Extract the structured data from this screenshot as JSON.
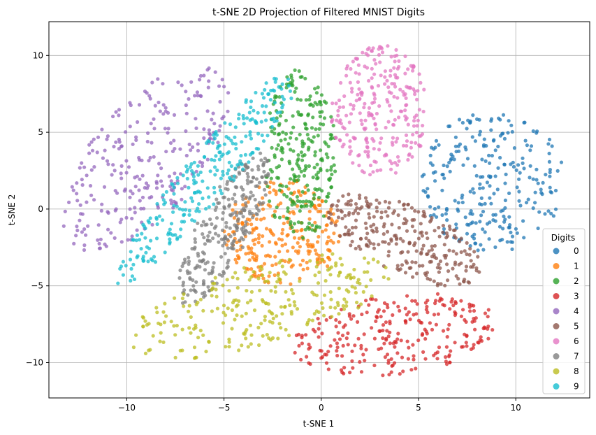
{
  "chart_data": {
    "type": "scatter",
    "title": "t-SNE 2D Projection of Filtered MNIST Digits",
    "xlabel": "t-SNE 1",
    "ylabel": "t-SNE 2",
    "xlim": [
      -14,
      13.8
    ],
    "ylim": [
      -12.3,
      12.2
    ],
    "xticks": [
      -10,
      -5,
      0,
      5,
      10
    ],
    "yticks": [
      -10,
      -5,
      0,
      5,
      10
    ],
    "xtick_labels": [
      "−10",
      "−5",
      "0",
      "5",
      "10"
    ],
    "ytick_labels": [
      "−10",
      "−5",
      "0",
      "5",
      "10"
    ],
    "grid": true,
    "legend": {
      "title": "Digits",
      "position": "lower-right"
    },
    "series": [
      {
        "name": "0",
        "color": "#1f77b4",
        "cluster": {
          "cx": 8.8,
          "cy": 1.8,
          "rx": 3.7,
          "ry": 4.6,
          "rot": 0
        }
      },
      {
        "name": "1",
        "color": "#ff7f0e",
        "cluster": {
          "cx": -2.0,
          "cy": -1.5,
          "rx": 3.0,
          "ry": 3.5,
          "rot": 0
        }
      },
      {
        "name": "2",
        "color": "#2ca02c",
        "cluster": {
          "cx": -1.1,
          "cy": 3.5,
          "rx": 1.9,
          "ry": 5.6,
          "rot": 0
        }
      },
      {
        "name": "3",
        "color": "#d62728",
        "cluster": {
          "cx": 3.8,
          "cy": -8.2,
          "rx": 5.3,
          "ry": 2.6,
          "rot": 10
        }
      },
      {
        "name": "4",
        "color": "#9467bd",
        "cluster": {
          "cx": -9.0,
          "cy": 3.3,
          "rx": 3.0,
          "ry": 6.8,
          "rot": -30
        }
      },
      {
        "name": "5",
        "color": "#8c564b",
        "cluster": {
          "cx": 4.3,
          "cy": -2.0,
          "rx": 4.6,
          "ry": 2.1,
          "rot": -33
        }
      },
      {
        "name": "6",
        "color": "#e377c2",
        "cluster": {
          "cx": 3.0,
          "cy": 6.4,
          "rx": 2.5,
          "ry": 4.3,
          "rot": 0
        }
      },
      {
        "name": "7",
        "color": "#7f7f7f",
        "cluster": {
          "cx": -5.0,
          "cy": -1.3,
          "rx": 1.4,
          "ry": 5.3,
          "rot": -22
        }
      },
      {
        "name": "8",
        "color": "#bcbd22",
        "cluster": {
          "cx": -3.2,
          "cy": -6.3,
          "rx": 7.2,
          "ry": 2.6,
          "rot": 21
        }
      },
      {
        "name": "9",
        "color": "#17becf",
        "cluster": {
          "cx": -5.8,
          "cy": 2.2,
          "rx": 1.3,
          "ry": 8.6,
          "rot": -33
        }
      }
    ]
  }
}
